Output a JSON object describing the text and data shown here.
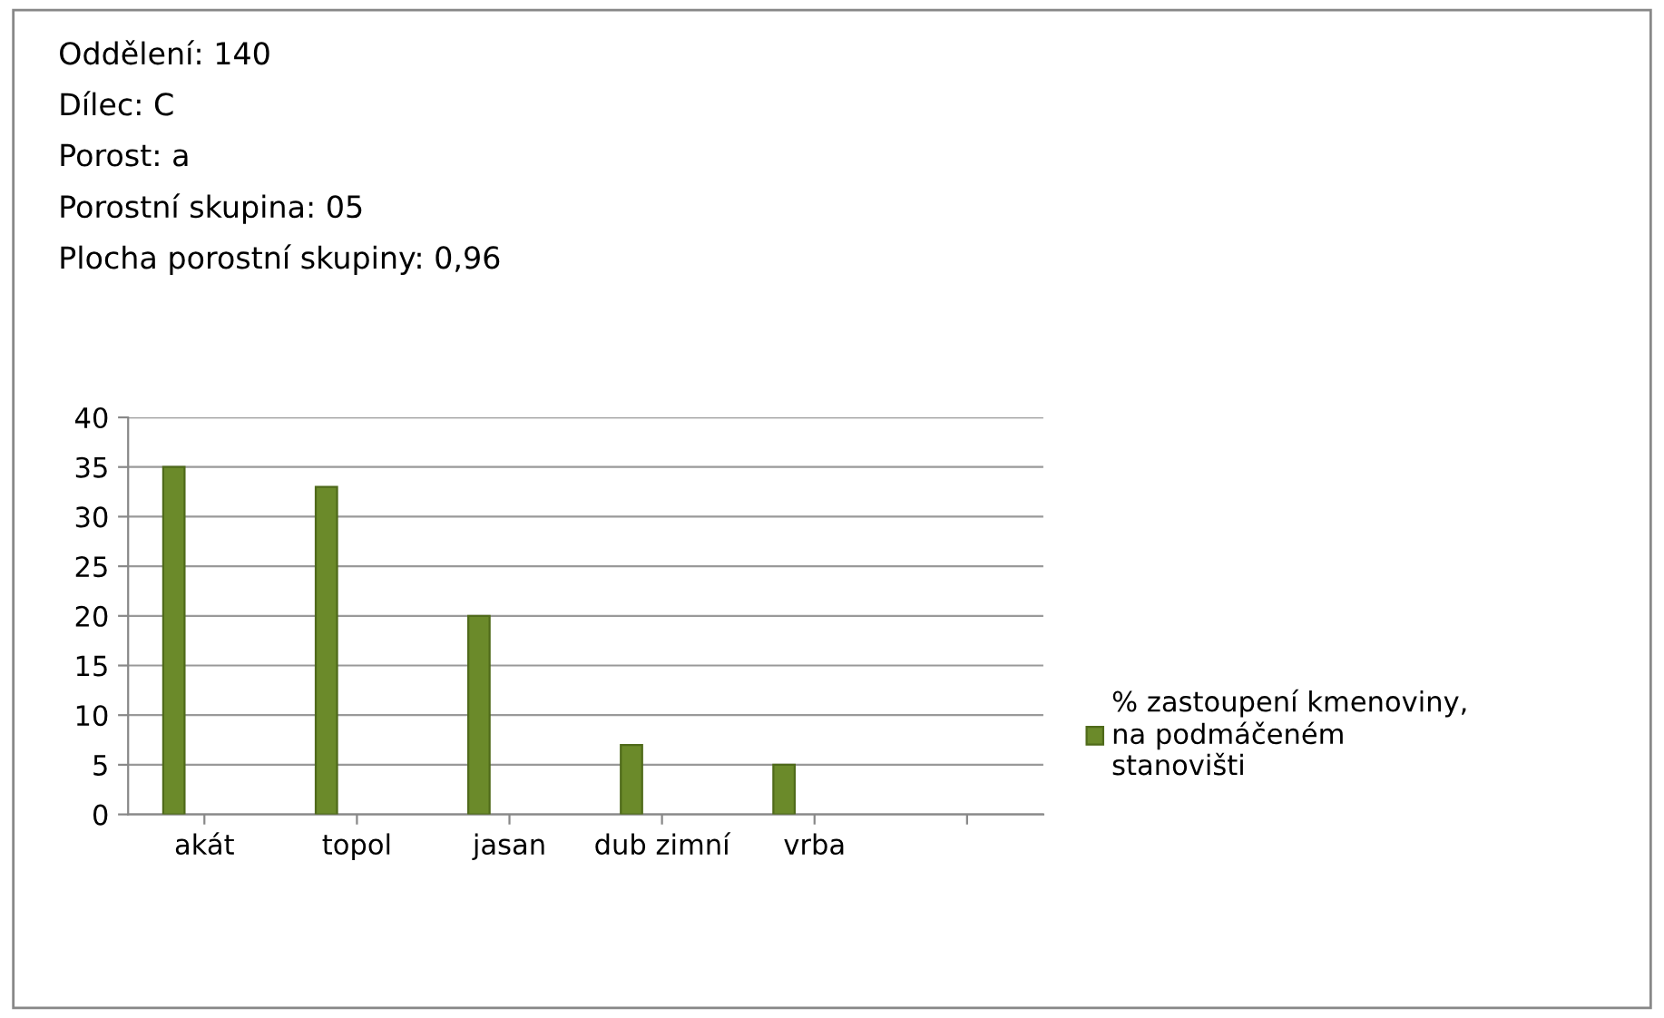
{
  "chart_data": {
    "type": "bar",
    "title": "Oddělení: 140",
    "annotations": [
      "Dílec: C",
      "Porost: a",
      "Porostní skupina: 05",
      "Plocha porostní skupiny: 0,96"
    ],
    "categories": [
      "akát",
      "topol",
      "jasan",
      "dub zimní",
      "vrba",
      null
    ],
    "series": [
      {
        "name": "% zastoupení kmenoviny,\nna podmáčeném\nstanovišti",
        "color": "#6b8a2a",
        "values": [
          35,
          33,
          20,
          7,
          5,
          null
        ]
      }
    ],
    "ylim": [
      0,
      40
    ],
    "yticks": [
      0,
      5,
      10,
      15,
      20,
      25,
      30,
      35,
      40
    ],
    "grid": "y",
    "legend": "right"
  }
}
